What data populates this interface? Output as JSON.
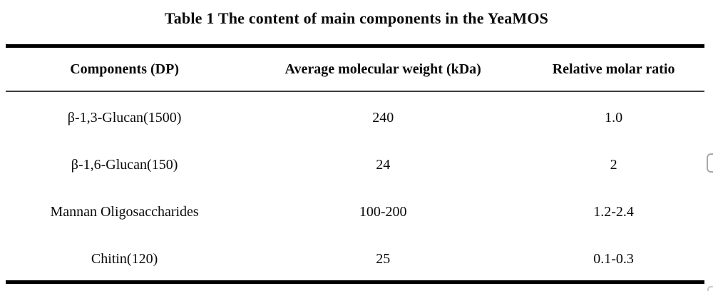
{
  "title": "Table 1 The content of main components in the YeaMOS",
  "table": {
    "columns": [
      "Components (DP)",
      "Average molecular weight (kDa)",
      "Relative molar ratio"
    ],
    "rows": [
      [
        "β-1,3-Glucan(1500)",
        "240",
        "1.0"
      ],
      [
        "β-1,6-Glucan(150)",
        "24",
        "2"
      ],
      [
        "Mannan Oligosaccharides",
        "100-200",
        "1.2-2.4"
      ],
      [
        "Chitin(120)",
        "25",
        "0.1-0.3"
      ]
    ]
  },
  "colors": {
    "background": "#ffffff",
    "text": "#0a0a0a",
    "rule_thick": "#000000",
    "rule_thin": "#3d3d3d",
    "widget_border": "#a8a8a8"
  }
}
